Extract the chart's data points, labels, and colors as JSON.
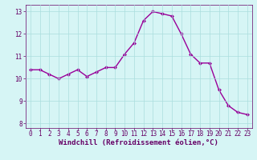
{
  "x": [
    0,
    1,
    2,
    3,
    4,
    5,
    6,
    7,
    8,
    9,
    10,
    11,
    12,
    13,
    14,
    15,
    16,
    17,
    18,
    19,
    20,
    21,
    22,
    23
  ],
  "y": [
    10.4,
    10.4,
    10.2,
    10.0,
    10.2,
    10.4,
    10.1,
    10.3,
    10.5,
    10.5,
    11.1,
    11.6,
    12.6,
    13.0,
    12.9,
    12.8,
    12.0,
    11.1,
    10.7,
    10.7,
    9.5,
    8.8,
    8.5,
    8.4
  ],
  "line_color": "#990099",
  "marker": "D",
  "marker_size": 2.0,
  "line_width": 1.0,
  "bg_color": "#d6f5f5",
  "grid_color": "#aadddd",
  "xlabel": "Windchill (Refroidissement éolien,°C)",
  "xlabel_color": "#660066",
  "xlabel_fontsize": 6.5,
  "tick_color": "#660066",
  "tick_fontsize": 5.5,
  "ylim": [
    7.8,
    13.3
  ],
  "xlim": [
    -0.5,
    23.5
  ],
  "yticks": [
    8,
    9,
    10,
    11,
    12,
    13
  ],
  "xtick_labels": [
    "0",
    "1",
    "2",
    "3",
    "4",
    "5",
    "6",
    "7",
    "8",
    "9",
    "10",
    "11",
    "12",
    "13",
    "14",
    "15",
    "16",
    "17",
    "18",
    "19",
    "20",
    "21",
    "22",
    "23"
  ]
}
